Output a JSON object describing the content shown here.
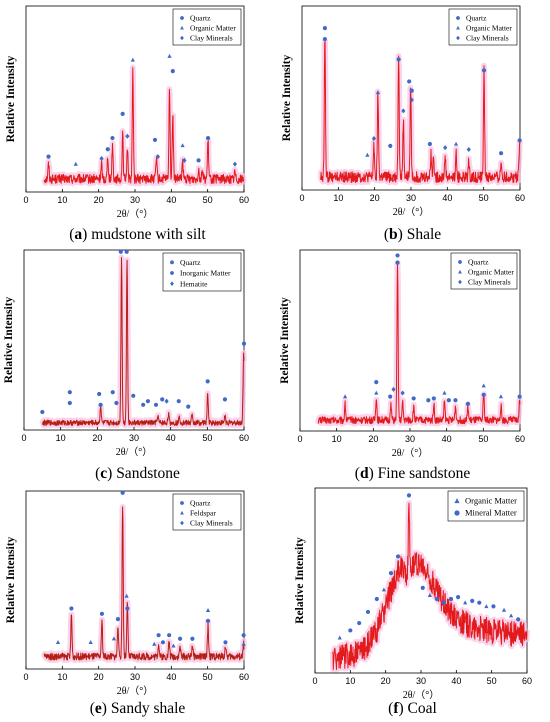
{
  "chart_data": [
    {
      "type": "line",
      "panel_letter": "a",
      "caption_rest": " mudstone with silt",
      "xlabel": "2θ/（°）",
      "ylabel": "Relative Intensity",
      "xlim": [
        0,
        60
      ],
      "xticks": [
        0,
        10,
        20,
        30,
        40,
        50,
        60
      ],
      "data_xlim": [
        5,
        60
      ],
      "ylim": [
        0,
        100
      ],
      "baseline": 7,
      "noise": 2.5,
      "hump": null,
      "peaks": [
        [
          6.2,
          8
        ],
        [
          20.8,
          8
        ],
        [
          22.5,
          13
        ],
        [
          23.8,
          19
        ],
        [
          26.6,
          24
        ],
        [
          27.9,
          18
        ],
        [
          29.4,
          58
        ],
        [
          35.9,
          11
        ],
        [
          39.5,
          50
        ],
        [
          40.4,
          36
        ],
        [
          43.1,
          9
        ],
        [
          47.5,
          6
        ],
        [
          48.5,
          5
        ],
        [
          50.1,
          21
        ],
        [
          57.5,
          4
        ]
      ],
      "markers": [
        {
          "x": 6.2,
          "y": 19,
          "s": 0
        },
        {
          "x": 13.7,
          "y": 15,
          "s": 1
        },
        {
          "x": 20.8,
          "y": 18,
          "s": 2
        },
        {
          "x": 22.5,
          "y": 23,
          "s": 0
        },
        {
          "x": 23.8,
          "y": 29,
          "s": 0
        },
        {
          "x": 26.6,
          "y": 42,
          "s": 0
        },
        {
          "x": 27.9,
          "y": 30,
          "s": 2
        },
        {
          "x": 29.4,
          "y": 71,
          "s": 1
        },
        {
          "x": 35.5,
          "y": 28,
          "s": 0
        },
        {
          "x": 36.3,
          "y": 19,
          "s": 2
        },
        {
          "x": 39.5,
          "y": 73,
          "s": 1
        },
        {
          "x": 40.4,
          "y": 65,
          "s": 0
        },
        {
          "x": 43.1,
          "y": 25,
          "s": 1
        },
        {
          "x": 43.6,
          "y": 17,
          "s": 2
        },
        {
          "x": 47.5,
          "y": 17,
          "s": 0
        },
        {
          "x": 50.1,
          "y": 29,
          "s": 0
        },
        {
          "x": 57.5,
          "y": 15,
          "s": 2
        }
      ],
      "legend": {
        "position": "top-right",
        "entries": [
          {
            "label": "Quartz",
            "marker": "circle"
          },
          {
            "label": "Organic Matter",
            "marker": "triangle"
          },
          {
            "label": "Clay Minerals",
            "marker": "diamond"
          }
        ]
      }
    },
    {
      "type": "line",
      "panel_letter": "b",
      "caption_rest": " Shale",
      "xlabel": "2θ/（°）",
      "ylabel": "Relative Intensity",
      "xlim": [
        0,
        60
      ],
      "xticks": [
        0,
        10,
        20,
        30,
        40,
        50,
        60
      ],
      "data_xlim": [
        5,
        60
      ],
      "ylim": [
        0,
        100
      ],
      "baseline": 7,
      "noise": 3,
      "hump": null,
      "peaks": [
        [
          6.3,
          78
        ],
        [
          19.8,
          18
        ],
        [
          20.9,
          47
        ],
        [
          26.6,
          68
        ],
        [
          27.9,
          30
        ],
        [
          29.9,
          50
        ],
        [
          35.5,
          13
        ],
        [
          36.2,
          13
        ],
        [
          39.4,
          12
        ],
        [
          42.4,
          13
        ],
        [
          45.9,
          9
        ],
        [
          50.1,
          58
        ],
        [
          54.8,
          8
        ],
        [
          59.9,
          18
        ]
      ],
      "markers": [
        {
          "x": 6.3,
          "y": 88,
          "s": 0
        },
        {
          "x": 6.3,
          "y": 82,
          "s": 0
        },
        {
          "x": 18.0,
          "y": 19,
          "s": 1
        },
        {
          "x": 19.8,
          "y": 28,
          "s": 2
        },
        {
          "x": 20.9,
          "y": 53,
          "s": 1
        },
        {
          "x": 24.3,
          "y": 24,
          "s": 0
        },
        {
          "x": 26.6,
          "y": 71,
          "s": 0
        },
        {
          "x": 27.9,
          "y": 43,
          "s": 2
        },
        {
          "x": 29.5,
          "y": 59,
          "s": 0
        },
        {
          "x": 30.2,
          "y": 54,
          "s": 0
        },
        {
          "x": 30.2,
          "y": 49,
          "s": 2
        },
        {
          "x": 35.2,
          "y": 25,
          "s": 0
        },
        {
          "x": 39.4,
          "y": 23,
          "s": 2
        },
        {
          "x": 42.4,
          "y": 25,
          "s": 1
        },
        {
          "x": 45.9,
          "y": 22,
          "s": 2
        },
        {
          "x": 50.1,
          "y": 65,
          "s": 0
        },
        {
          "x": 54.8,
          "y": 20,
          "s": 0
        },
        {
          "x": 59.9,
          "y": 27,
          "s": 0
        }
      ],
      "legend": {
        "position": "top-right",
        "entries": [
          {
            "label": "Quartz",
            "marker": "circle"
          },
          {
            "label": "Organic Matter",
            "marker": "triangle"
          },
          {
            "label": "Clay Minerals",
            "marker": "diamond"
          }
        ]
      }
    },
    {
      "type": "line",
      "panel_letter": "c",
      "caption_rest": " Sandstone",
      "xlabel": "2θ/（°）",
      "ylabel": "Relative Intensity",
      "xlim": [
        0,
        60
      ],
      "xticks": [
        0,
        10,
        20,
        30,
        40,
        50,
        60
      ],
      "data_xlim": [
        5,
        60
      ],
      "ylim": [
        0,
        100
      ],
      "baseline": 4,
      "noise": 1.5,
      "hump": null,
      "peaks": [
        [
          20.9,
          10
        ],
        [
          26.6,
          92
        ],
        [
          28.1,
          91
        ],
        [
          36.5,
          4
        ],
        [
          39.4,
          5
        ],
        [
          42.4,
          4
        ],
        [
          45.8,
          4
        ],
        [
          50.1,
          16
        ],
        [
          54.8,
          4
        ],
        [
          59.9,
          40
        ]
      ],
      "markers": [
        {
          "x": 5.0,
          "y": 10,
          "s": 0
        },
        {
          "x": 12.5,
          "y": 21,
          "s": 0
        },
        {
          "x": 12.5,
          "y": 15,
          "s": 0
        },
        {
          "x": 20.5,
          "y": 20,
          "s": 1
        },
        {
          "x": 20.9,
          "y": 14,
          "s": 0
        },
        {
          "x": 24.2,
          "y": 21,
          "s": 0
        },
        {
          "x": 25.2,
          "y": 15,
          "s": 0
        },
        {
          "x": 26.4,
          "y": 99,
          "s": 0
        },
        {
          "x": 28.0,
          "y": 99,
          "s": 0
        },
        {
          "x": 29.8,
          "y": 19,
          "s": 1
        },
        {
          "x": 32.5,
          "y": 14,
          "s": 0
        },
        {
          "x": 33.8,
          "y": 16,
          "s": 0
        },
        {
          "x": 36.0,
          "y": 14,
          "s": 0
        },
        {
          "x": 37.7,
          "y": 17,
          "s": 0
        },
        {
          "x": 38.9,
          "y": 16,
          "s": 2
        },
        {
          "x": 42.2,
          "y": 16,
          "s": 0
        },
        {
          "x": 44.8,
          "y": 13,
          "s": 0
        },
        {
          "x": 50.1,
          "y": 27,
          "s": 0
        },
        {
          "x": 54.8,
          "y": 17,
          "s": 0
        },
        {
          "x": 60.0,
          "y": 48,
          "s": 0
        }
      ],
      "legend": {
        "position": "top-right",
        "entries": [
          {
            "label": "Quartz",
            "marker": "circle"
          },
          {
            "label": "Inorganic Matter",
            "marker": "circle"
          },
          {
            "label": "Hematite",
            "marker": "diamond"
          }
        ]
      }
    },
    {
      "type": "line",
      "panel_letter": "d",
      "caption_rest": " Fine sandstone",
      "xlabel": "2θ/（°）",
      "ylabel": "Relative Intensity",
      "xlim": [
        0,
        60
      ],
      "xticks": [
        0,
        10,
        20,
        30,
        40,
        50,
        60
      ],
      "data_xlim": [
        5,
        60
      ],
      "ylim": [
        0,
        100
      ],
      "baseline": 6,
      "noise": 2,
      "hump": null,
      "peaks": [
        [
          12.3,
          9
        ],
        [
          20.8,
          13
        ],
        [
          24.8,
          8
        ],
        [
          26.6,
          86
        ],
        [
          28.0,
          10
        ],
        [
          31.0,
          7
        ],
        [
          36.5,
          9
        ],
        [
          39.4,
          10
        ],
        [
          42.4,
          8
        ],
        [
          45.8,
          7
        ],
        [
          50.1,
          15
        ],
        [
          54.8,
          8
        ],
        [
          59.9,
          11
        ]
      ],
      "markers": [
        {
          "x": 12.3,
          "y": 19,
          "s": 1
        },
        {
          "x": 20.8,
          "y": 27,
          "s": 0
        },
        {
          "x": 20.8,
          "y": 21,
          "s": 1
        },
        {
          "x": 24.6,
          "y": 19,
          "s": 0
        },
        {
          "x": 25.5,
          "y": 23,
          "s": 2
        },
        {
          "x": 26.6,
          "y": 97,
          "s": 0
        },
        {
          "x": 26.6,
          "y": 93,
          "s": 0
        },
        {
          "x": 28.0,
          "y": 21,
          "s": 2
        },
        {
          "x": 31.0,
          "y": 18,
          "s": 0
        },
        {
          "x": 35.0,
          "y": 17,
          "s": 0
        },
        {
          "x": 36.5,
          "y": 18,
          "s": 0
        },
        {
          "x": 39.4,
          "y": 21,
          "s": 1
        },
        {
          "x": 40.6,
          "y": 17,
          "s": 0
        },
        {
          "x": 42.4,
          "y": 17,
          "s": 0
        },
        {
          "x": 45.8,
          "y": 15,
          "s": 0
        },
        {
          "x": 50.1,
          "y": 25,
          "s": 1
        },
        {
          "x": 50.1,
          "y": 20,
          "s": 0
        },
        {
          "x": 54.8,
          "y": 19,
          "s": 1
        },
        {
          "x": 59.9,
          "y": 19,
          "s": 0
        }
      ],
      "legend": {
        "position": "top-right",
        "entries": [
          {
            "label": "Quartz",
            "marker": "circle"
          },
          {
            "label": "Organic Matter",
            "marker": "triangle"
          },
          {
            "label": "Clay Minerals",
            "marker": "diamond"
          }
        ]
      }
    },
    {
      "type": "line",
      "panel_letter": "e",
      "caption_rest": " Sandy shale",
      "xlabel": "2θ/（°）",
      "ylabel": "Relative Intensity",
      "xlim": [
        0,
        60
      ],
      "xticks": [
        0,
        10,
        20,
        30,
        40,
        50,
        60
      ],
      "data_xlim": [
        5,
        60
      ],
      "ylim": [
        0,
        100
      ],
      "baseline": 7,
      "noise": 2,
      "hump": null,
      "peaks": [
        [
          12.5,
          24
        ],
        [
          20.9,
          20
        ],
        [
          25.3,
          18
        ],
        [
          26.6,
          86
        ],
        [
          27.9,
          30
        ],
        [
          36.5,
          8
        ],
        [
          39.4,
          9
        ],
        [
          42.4,
          6
        ],
        [
          45.8,
          7
        ],
        [
          50.1,
          18
        ],
        [
          54.9,
          6
        ],
        [
          59.9,
          7
        ]
      ],
      "markers": [
        {
          "x": 8.8,
          "y": 15,
          "s": 1
        },
        {
          "x": 12.5,
          "y": 34,
          "s": 0
        },
        {
          "x": 17.8,
          "y": 15,
          "s": 1
        },
        {
          "x": 20.9,
          "y": 31,
          "s": 0
        },
        {
          "x": 24.2,
          "y": 17,
          "s": 1
        },
        {
          "x": 25.3,
          "y": 28,
          "s": 0
        },
        {
          "x": 26.6,
          "y": 99,
          "s": 0
        },
        {
          "x": 27.7,
          "y": 41,
          "s": 1
        },
        {
          "x": 27.9,
          "y": 34,
          "s": 0
        },
        {
          "x": 35.3,
          "y": 14,
          "s": 1
        },
        {
          "x": 36.5,
          "y": 19,
          "s": 0
        },
        {
          "x": 37.7,
          "y": 15,
          "s": 0
        },
        {
          "x": 39.4,
          "y": 19,
          "s": 0
        },
        {
          "x": 40.6,
          "y": 13,
          "s": 1
        },
        {
          "x": 42.4,
          "y": 17,
          "s": 0
        },
        {
          "x": 45.8,
          "y": 17,
          "s": 0
        },
        {
          "x": 50.1,
          "y": 33,
          "s": 1
        },
        {
          "x": 50.1,
          "y": 27,
          "s": 0
        },
        {
          "x": 54.9,
          "y": 15,
          "s": 0
        },
        {
          "x": 59.9,
          "y": 19,
          "s": 0
        },
        {
          "x": 59.9,
          "y": 14,
          "s": 1
        }
      ],
      "legend": {
        "position": "top-right",
        "entries": [
          {
            "label": "Quartz",
            "marker": "circle"
          },
          {
            "label": "Feldspar",
            "marker": "triangle"
          },
          {
            "label": "Clay Minerals",
            "marker": "diamond"
          }
        ]
      }
    },
    {
      "type": "line",
      "panel_letter": "f",
      "caption_rest": " Coal",
      "xlabel": "2θ/（°）",
      "ylabel": "Relative Intensity",
      "xlim": [
        0,
        60
      ],
      "xticks": [
        0,
        10,
        20,
        30,
        40,
        50,
        60
      ],
      "data_xlim": [
        5,
        60
      ],
      "ylim": [
        0,
        100
      ],
      "baseline": 8,
      "noise": 7,
      "hump": {
        "center": 25.5,
        "height": 44,
        "width_left": 7,
        "width_right": 10,
        "plateau": 22
      },
      "peaks": [
        [
          26.6,
          38
        ]
      ],
      "markers": [
        {
          "x": 7.0,
          "y": 19,
          "s": 0
        },
        {
          "x": 10.0,
          "y": 23,
          "s": 1
        },
        {
          "x": 12.5,
          "y": 27,
          "s": 1
        },
        {
          "x": 15.0,
          "y": 33,
          "s": 1
        },
        {
          "x": 17.5,
          "y": 40,
          "s": 1
        },
        {
          "x": 19.5,
          "y": 45,
          "s": 0
        },
        {
          "x": 21.5,
          "y": 54,
          "s": 1
        },
        {
          "x": 23.5,
          "y": 63,
          "s": 1
        },
        {
          "x": 26.6,
          "y": 96,
          "s": 1
        },
        {
          "x": 30.5,
          "y": 46,
          "s": 1
        },
        {
          "x": 32.5,
          "y": 42,
          "s": 0
        },
        {
          "x": 34.5,
          "y": 40,
          "s": 1
        },
        {
          "x": 36.5,
          "y": 38,
          "s": 1
        },
        {
          "x": 38.5,
          "y": 40,
          "s": 1
        },
        {
          "x": 40.5,
          "y": 41,
          "s": 1
        },
        {
          "x": 42.5,
          "y": 38,
          "s": 0
        },
        {
          "x": 44.5,
          "y": 39,
          "s": 1
        },
        {
          "x": 46.5,
          "y": 38,
          "s": 1
        },
        {
          "x": 48.5,
          "y": 36,
          "s": 0
        },
        {
          "x": 50.5,
          "y": 36,
          "s": 1
        },
        {
          "x": 53.5,
          "y": 34,
          "s": 0
        },
        {
          "x": 55.5,
          "y": 31,
          "s": 0
        },
        {
          "x": 57.5,
          "y": 29,
          "s": 1
        }
      ],
      "legend": {
        "position": "top-right",
        "entries": [
          {
            "label": "Organic Matter",
            "marker": "triangle"
          },
          {
            "label": "Mineral Matter",
            "marker": "circle"
          }
        ]
      }
    }
  ],
  "colors": {
    "trace": "#e31a1c",
    "trace_dark": "#8b2a10",
    "halo": "#f7c6e6",
    "marker": "#4169c8",
    "axis": "#000000"
  }
}
